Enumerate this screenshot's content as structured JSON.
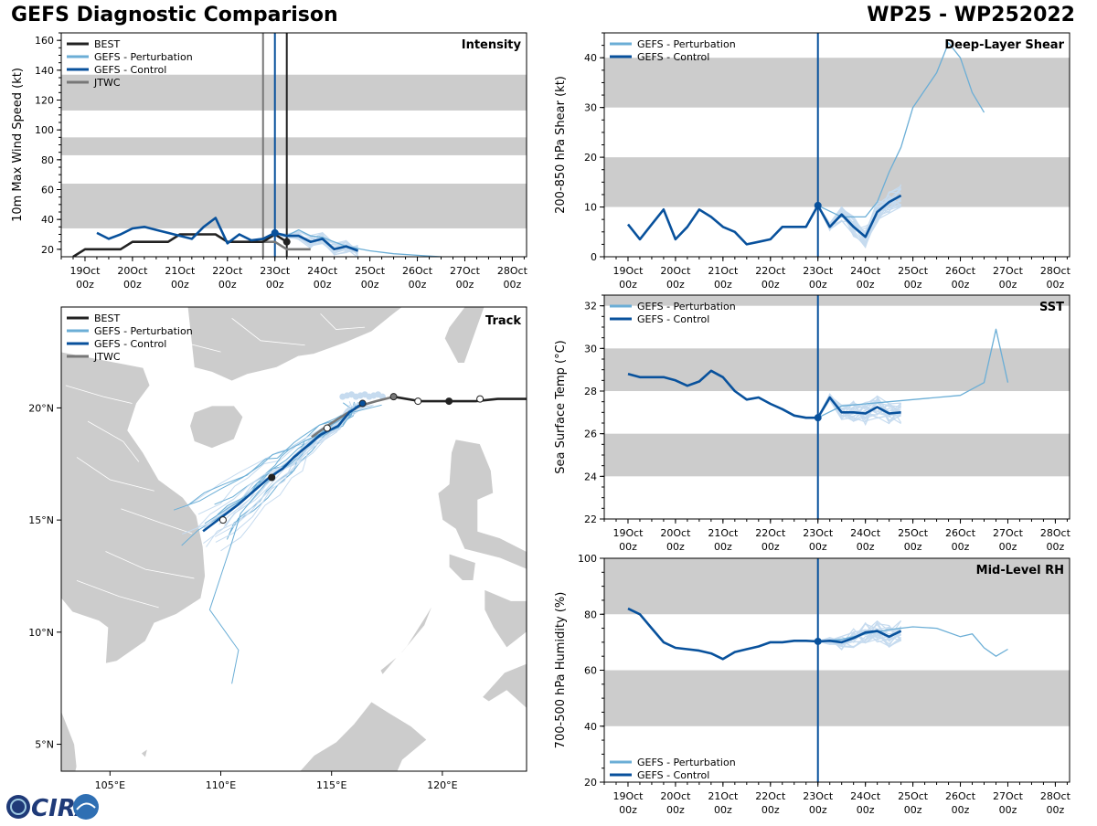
{
  "header": {
    "title": "GEFS Diagnostic Comparison",
    "storm": "WP25 - WP252022"
  },
  "logo": {
    "text": "CIRA"
  },
  "colors": {
    "best": "#222222",
    "pert": "#6baed6",
    "pert_light": "#c6dbef",
    "control": "#08519c",
    "jtwc": "#777777",
    "band": "#cccccc",
    "land": "#cccccc"
  },
  "legend": {
    "best": "BEST",
    "pert": "GEFS - Perturbation",
    "control": "GEFS - Control",
    "jtwc": "JTWC"
  },
  "time_ticks": [
    {
      "d": "19Oct",
      "h": "00z"
    },
    {
      "d": "20Oct",
      "h": "00z"
    },
    {
      "d": "21Oct",
      "h": "00z"
    },
    {
      "d": "22Oct",
      "h": "00z"
    },
    {
      "d": "23Oct",
      "h": "00z"
    },
    {
      "d": "24Oct",
      "h": "00z"
    },
    {
      "d": "25Oct",
      "h": "00z"
    },
    {
      "d": "26Oct",
      "h": "00z"
    },
    {
      "d": "27Oct",
      "h": "00z"
    },
    {
      "d": "28Oct",
      "h": "00z"
    }
  ],
  "chart_data": [
    {
      "id": "intensity",
      "type": "line",
      "title": "Intensity",
      "xlabel": "",
      "ylabel": "10m Max Wind Speed (kt)",
      "xlim": [
        -4.5,
        5.3
      ],
      "ylim": [
        15,
        165
      ],
      "yticks": [
        20,
        40,
        60,
        80,
        100,
        120,
        140,
        160
      ],
      "bands": [
        [
          34,
          64
        ],
        [
          83,
          95
        ],
        [
          113,
          137
        ]
      ],
      "vlines": [
        {
          "x": -0.25,
          "series": "jtwc"
        },
        {
          "x": 0.25,
          "series": "best"
        },
        {
          "x": 0,
          "series": "control"
        }
      ],
      "series": [
        {
          "name": "BEST",
          "key": "best",
          "x": [
            -4.25,
            -4,
            -3.75,
            -3.5,
            -3.25,
            -3,
            -2.75,
            -2.5,
            -2.25,
            -2,
            -1.75,
            -1.5,
            -1.25,
            -1,
            -0.75,
            -0.5,
            -0.25,
            0,
            0.25
          ],
          "y": [
            15,
            20,
            20,
            20,
            20,
            25,
            25,
            25,
            25,
            30,
            30,
            30,
            30,
            25,
            25,
            25,
            25,
            30,
            25
          ]
        },
        {
          "name": "JTWC",
          "key": "jtwc",
          "x": [
            -0.25,
            0,
            0.25,
            0.5,
            0.75
          ],
          "y": [
            25,
            25,
            20,
            20,
            20
          ]
        },
        {
          "name": "GEFS - Control",
          "key": "control",
          "x": [
            -3.75,
            -3.5,
            -3.25,
            -3,
            -2.75,
            -2.5,
            -2.25,
            -2,
            -1.75,
            -1.5,
            -1.25,
            -1,
            -0.75,
            -0.5,
            -0.25,
            0,
            0.25,
            0.5,
            0.75,
            1,
            1.25,
            1.5,
            1.75
          ],
          "y": [
            31,
            27,
            30,
            34,
            35,
            33,
            31,
            29,
            27,
            35,
            41,
            24,
            30,
            26,
            27,
            31,
            29,
            29,
            25,
            27,
            20,
            22,
            19
          ]
        },
        {
          "name": "GEFS - Perturbation (spread)",
          "key": "pert",
          "x": [
            0,
            0.25,
            0.5,
            0.75,
            1,
            1.25,
            1.5,
            2,
            2.5,
            3,
            3.5
          ],
          "y": [
            31,
            29,
            33,
            29,
            28,
            25,
            22,
            19,
            17,
            16,
            15
          ]
        }
      ],
      "points": [
        {
          "x": 0.25,
          "y": 25,
          "series": "best"
        },
        {
          "x": 0,
          "y": 31,
          "series": "control"
        }
      ]
    },
    {
      "id": "shear",
      "type": "line",
      "title": "Deep-Layer Shear",
      "xlabel": "",
      "ylabel": "200-850 hPa Shear (kt)",
      "xlim": [
        -4.5,
        5.3
      ],
      "ylim": [
        0,
        45
      ],
      "yticks": [
        0,
        10,
        20,
        30,
        40
      ],
      "bands": [
        [
          10,
          20
        ],
        [
          30,
          40
        ]
      ],
      "vlines": [
        {
          "x": 0,
          "series": "control"
        }
      ],
      "series": [
        {
          "name": "GEFS - Control",
          "key": "control",
          "x": [
            -4,
            -3.75,
            -3.5,
            -3.25,
            -3,
            -2.75,
            -2.5,
            -2.25,
            -2,
            -1.75,
            -1.5,
            -1.25,
            -1,
            -0.75,
            -0.5,
            -0.25,
            0,
            0.25,
            0.5,
            0.75,
            1,
            1.25,
            1.5,
            1.75
          ],
          "y": [
            6.5,
            3.5,
            6.5,
            9.5,
            3.5,
            6,
            9.5,
            8,
            6,
            5,
            2.5,
            3,
            3.5,
            6,
            6,
            6,
            10.3,
            6,
            8.5,
            6,
            4,
            9,
            11,
            12.3
          ]
        },
        {
          "name": "GEFS - Perturbation",
          "key": "pert",
          "x": [
            0,
            0.5,
            1,
            1.25,
            1.5,
            1.75,
            2,
            2.25,
            2.5,
            2.75,
            3,
            3.25,
            3.5
          ],
          "y": [
            10.3,
            8,
            8,
            11,
            17,
            22,
            30,
            33.5,
            37,
            43,
            40,
            33,
            29
          ]
        }
      ],
      "points": [
        {
          "x": 0,
          "y": 10.3,
          "series": "control"
        }
      ]
    },
    {
      "id": "sst",
      "type": "line",
      "title": "SST",
      "xlabel": "",
      "ylabel": "Sea Surface Temp (°C)",
      "xlim": [
        -4.5,
        5.3
      ],
      "ylim": [
        22,
        32.5
      ],
      "yticks": [
        22,
        24,
        26,
        28,
        30,
        32
      ],
      "bands": [
        [
          24,
          26
        ],
        [
          28,
          30
        ],
        [
          32,
          34
        ]
      ],
      "vlines": [
        {
          "x": 0,
          "series": "control"
        }
      ],
      "series": [
        {
          "name": "GEFS - Control",
          "key": "control",
          "x": [
            -4,
            -3.75,
            -3.5,
            -3.25,
            -3,
            -2.75,
            -2.5,
            -2.25,
            -2,
            -1.75,
            -1.5,
            -1.25,
            -1,
            -0.75,
            -0.5,
            -0.25,
            0,
            0.25,
            0.5,
            0.75,
            1,
            1.25,
            1.5,
            1.75
          ],
          "y": [
            28.8,
            28.65,
            28.65,
            28.65,
            28.5,
            28.25,
            28.45,
            28.95,
            28.65,
            28,
            27.6,
            27.7,
            27.4,
            27.15,
            26.85,
            26.75,
            26.75,
            27.7,
            27,
            27,
            26.95,
            27.25,
            26.95,
            27.0
          ]
        },
        {
          "name": "GEFS - Perturbation",
          "key": "pert",
          "x": [
            0,
            0.5,
            1,
            1.5,
            2,
            2.5,
            3,
            3.25,
            3.5,
            3.75,
            4
          ],
          "y": [
            26.75,
            27.3,
            27.4,
            27.5,
            27.6,
            27.7,
            27.8,
            28.1,
            28.4,
            30.9,
            28.4
          ]
        }
      ],
      "points": [
        {
          "x": 0,
          "y": 26.75,
          "series": "control"
        }
      ]
    },
    {
      "id": "rh",
      "type": "line",
      "title": "Mid-Level RH",
      "xlabel": "",
      "ylabel": "700-500 hPa Humidity (%)",
      "xlim": [
        -4.5,
        5.3
      ],
      "ylim": [
        20,
        100
      ],
      "yticks": [
        20,
        40,
        60,
        80,
        100
      ],
      "bands": [
        [
          40,
          60
        ],
        [
          80,
          100
        ]
      ],
      "vlines": [
        {
          "x": 0,
          "series": "control"
        }
      ],
      "series": [
        {
          "name": "GEFS - Control",
          "key": "control",
          "x": [
            -4,
            -3.75,
            -3.5,
            -3.25,
            -3,
            -2.75,
            -2.5,
            -2.25,
            -2,
            -1.75,
            -1.5,
            -1.25,
            -1,
            -0.75,
            -0.5,
            -0.25,
            0,
            0.25,
            0.5,
            0.75,
            1,
            1.25,
            1.5,
            1.75
          ],
          "y": [
            82,
            80,
            75,
            70,
            68,
            67.5,
            67,
            66,
            64,
            66.5,
            67.5,
            68.5,
            70,
            70,
            70.5,
            70.5,
            70.3,
            70.5,
            70,
            71.5,
            73.5,
            74,
            72,
            74
          ]
        },
        {
          "name": "GEFS - Perturbation",
          "key": "pert",
          "x": [
            0,
            0.5,
            1,
            1.5,
            2,
            2.5,
            3,
            3.25,
            3.5,
            3.75,
            4
          ],
          "y": [
            70.3,
            71,
            73,
            74.5,
            75.5,
            75,
            72,
            73,
            68,
            65,
            67.5
          ]
        }
      ],
      "points": [
        {
          "x": 0,
          "y": 70.3,
          "series": "control"
        }
      ]
    },
    {
      "id": "track",
      "type": "scatter",
      "title": "Track",
      "xlim": [
        102.8,
        123.8
      ],
      "ylim": [
        3.8,
        24.5
      ],
      "xticks": [
        {
          "v": 105,
          "label": "105°E"
        },
        {
          "v": 110,
          "label": "110°E"
        },
        {
          "v": 115,
          "label": "115°E"
        },
        {
          "v": 120,
          "label": "120°E"
        }
      ],
      "yticks": [
        {
          "v": 5,
          "label": "5°N"
        },
        {
          "v": 10,
          "label": "10°N"
        },
        {
          "v": 15,
          "label": "15°N"
        },
        {
          "v": 20,
          "label": "20°N"
        }
      ],
      "series": [
        {
          "name": "BEST",
          "key": "best",
          "lon": [
            123.8,
            122.5,
            121.5,
            120.3,
            119,
            117.8
          ],
          "lat": [
            20.4,
            20.4,
            20.3,
            20.3,
            20.3,
            20.5
          ]
        },
        {
          "name": "JTWC",
          "key": "jtwc",
          "lon": [
            117.8,
            117,
            116.3,
            115.6,
            114.8,
            114.1
          ],
          "lat": [
            20.5,
            20.3,
            20.1,
            19.7,
            19.2,
            18.7
          ]
        },
        {
          "name": "GEFS - Control",
          "key": "control",
          "lon": [
            116.4,
            115.8,
            115.3,
            114.5,
            113.9,
            113.3,
            112.8,
            112.2,
            111.5,
            110.8,
            110,
            109.2
          ],
          "lat": [
            20.2,
            19.8,
            19.2,
            18.8,
            18.3,
            17.8,
            17.3,
            16.9,
            16.3,
            15.7,
            15.1,
            14.5
          ]
        },
        {
          "name": "GEFS - Perturbation",
          "key": "pert",
          "lon": [
            116.4,
            115,
            113.5,
            112,
            110.9,
            110.5,
            110,
            109.5,
            110.8,
            110.5
          ],
          "lat": [
            20.2,
            19.3,
            18,
            16.6,
            15.3,
            14,
            12.5,
            11,
            9.2,
            7.7
          ]
        }
      ],
      "markers": [
        {
          "lon": 121.7,
          "lat": 20.4,
          "fill": "white"
        },
        {
          "lon": 120.3,
          "lat": 20.3,
          "fill": "best"
        },
        {
          "lon": 118.9,
          "lat": 20.3,
          "fill": "white"
        },
        {
          "lon": 117.8,
          "lat": 20.5,
          "fill": "jtwc"
        },
        {
          "lon": 114.8,
          "lat": 19.1,
          "fill": "white"
        },
        {
          "lon": 112.3,
          "lat": 16.9,
          "fill": "best"
        },
        {
          "lon": 110.1,
          "lat": 15.0,
          "fill": "white"
        },
        {
          "lon": 116.4,
          "lat": 20.2,
          "fill": "control"
        }
      ]
    }
  ]
}
